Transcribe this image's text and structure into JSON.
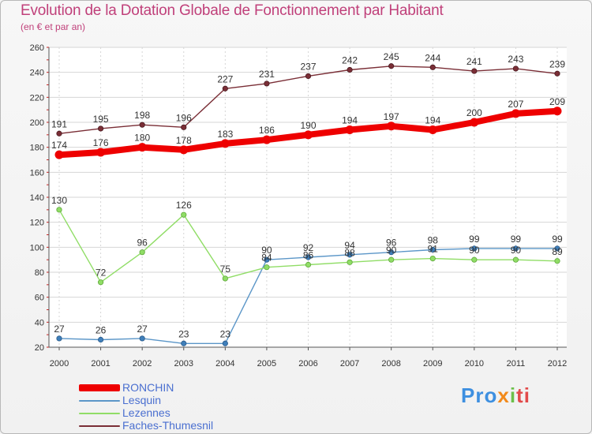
{
  "title": "Evolution de la Dotation Globale de Fonctionnement par Habitant",
  "subtitle": "(en € et par an)",
  "brand": {
    "p1": "Pro",
    "p2": "x",
    "p3": "i",
    "p4": "ti"
  },
  "colors": {
    "title": "#c0407a",
    "ronchin": "#ee0000",
    "lesquin": "#5b96c8",
    "lezennes": "#90dd66",
    "faches": "#7a2e36",
    "legend_text": "#4a6fd0",
    "axis_text": "#333333",
    "grid": "#d6d6d6"
  },
  "chart_data": {
    "type": "line",
    "title": "Evolution de la Dotation Globale de Fonctionnement par Habitant",
    "ylabel": "(en € et par an)",
    "xlabel": "",
    "ylim": [
      20,
      260
    ],
    "yticks": [
      20,
      40,
      60,
      80,
      100,
      120,
      140,
      160,
      180,
      200,
      220,
      240,
      260
    ],
    "categories": [
      "2000",
      "2001",
      "2002",
      "2003",
      "2004",
      "2005",
      "2006",
      "2007",
      "2008",
      "2009",
      "2010",
      "2011",
      "2012"
    ],
    "grid": true,
    "series": [
      {
        "name": "RONCHIN",
        "key": "ronchin",
        "values": [
          174,
          176,
          180,
          178,
          183,
          186,
          190,
          194,
          197,
          194,
          200,
          207,
          209
        ],
        "labels": [
          "174",
          "176",
          "180",
          "178",
          "183",
          "186",
          "190",
          "194",
          "197",
          "194",
          "200",
          "207",
          "209"
        ]
      },
      {
        "name": "Lesquin",
        "key": "lesquin",
        "values": [
          27,
          26,
          27,
          23,
          23,
          90,
          92,
          94,
          96,
          98,
          99,
          99,
          99
        ],
        "labels": [
          "27",
          "26",
          "27",
          "23",
          "23",
          "90",
          "92",
          "94",
          "96",
          "98",
          "99",
          "99",
          "99"
        ]
      },
      {
        "name": "Lezennes",
        "key": "lezennes",
        "values": [
          130,
          72,
          96,
          126,
          75,
          84,
          86,
          88,
          90,
          91,
          90,
          90,
          89
        ],
        "labels": [
          "130",
          "72",
          "96",
          "126",
          "75",
          "84",
          "86",
          "88",
          "90",
          "91",
          "90",
          "90",
          "89"
        ]
      },
      {
        "name": "Faches-Thumesnil",
        "key": "faches",
        "values": [
          191,
          195,
          198,
          196,
          227,
          231,
          237,
          242,
          245,
          244,
          241,
          243,
          239
        ],
        "labels": [
          "191",
          "195",
          "198",
          "196",
          "227",
          "231",
          "237",
          "242",
          "245",
          "244",
          "241",
          "243",
          "239"
        ]
      }
    ]
  }
}
